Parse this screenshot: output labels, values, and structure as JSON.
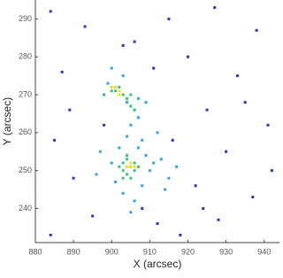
{
  "chart_data": {
    "type": "scatter",
    "xlabel": "X (arcsec)",
    "ylabel": "Y (arcsec)",
    "xlim": [
      880,
      944
    ],
    "ylim": [
      231,
      295
    ],
    "xticks": [
      880,
      890,
      900,
      910,
      920,
      930,
      940
    ],
    "yticks": [
      240,
      250,
      260,
      270,
      280,
      290
    ],
    "series": [
      {
        "color": "#2a3aa8",
        "x": [
          884,
          893,
          915,
          927,
          938,
          906,
          920,
          887,
          933,
          911,
          898,
          925,
          941,
          885,
          916,
          930,
          890,
          922,
          937,
          895,
          912,
          928,
          884,
          918,
          942,
          903,
          935,
          889,
          924,
          908
        ],
        "values": [
          292,
          288,
          290,
          293,
          287,
          284,
          280,
          276,
          275,
          277,
          262,
          266,
          262,
          258,
          258,
          255,
          248,
          246,
          243,
          238,
          236,
          237,
          233,
          233,
          250,
          283,
          268,
          266,
          240,
          240
        ]
      },
      {
        "color": "#3aa0e8",
        "x": [
          899,
          904,
          906,
          907,
          905,
          898,
          903,
          907,
          908,
          907,
          909,
          902,
          901,
          910,
          908,
          903,
          900,
          911,
          913,
          915,
          906,
          896,
          904,
          909,
          900,
          912,
          914,
          897,
          917,
          905
        ],
        "values": [
          273,
          268,
          266,
          264,
          262,
          270,
          275,
          269,
          258,
          256,
          254,
          256,
          247,
          250,
          246,
          244,
          252,
          252,
          253,
          248,
          242,
          249,
          259,
          268,
          277,
          260,
          245,
          255,
          251,
          239
        ]
      },
      {
        "color": "#40c080",
        "x": [
          901,
          903,
          904,
          902,
          905,
          903,
          905,
          906,
          904,
          904,
          906,
          903,
          907,
          905,
          902,
          904,
          906,
          900,
          905,
          903
        ],
        "values": [
          271,
          270,
          269,
          272,
          267,
          252,
          251,
          250,
          249,
          253,
          252,
          250,
          251,
          248,
          251,
          254,
          266,
          271,
          270,
          248
        ]
      },
      {
        "color": "#e8e020",
        "x": [
          901,
          902,
          900,
          905,
          904,
          906,
          905,
          902
        ],
        "values": [
          272,
          271,
          272,
          251,
          251,
          251,
          252,
          270
        ]
      }
    ]
  }
}
